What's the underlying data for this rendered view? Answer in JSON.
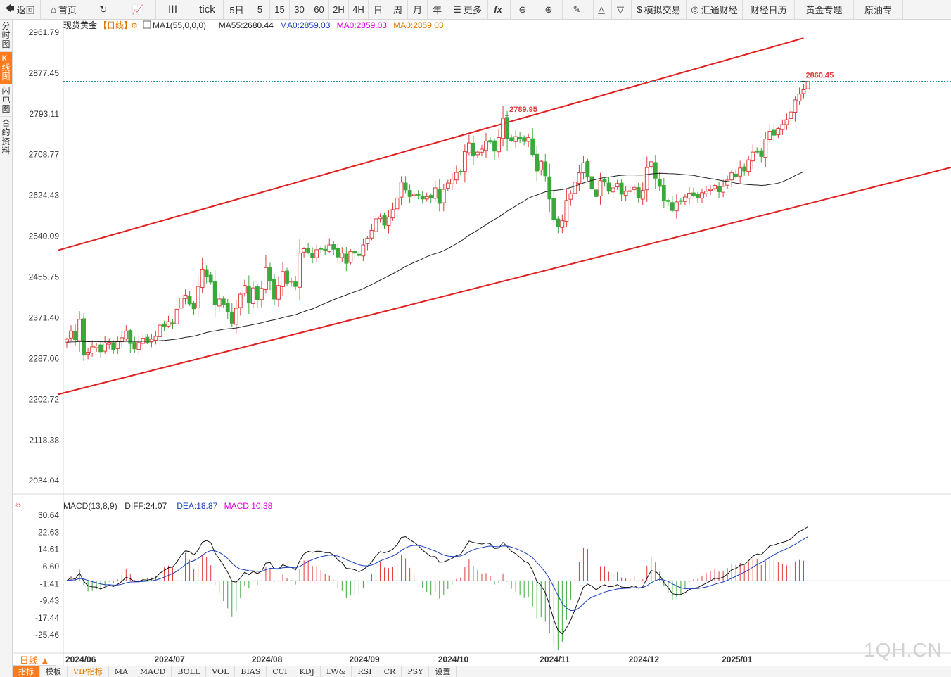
{
  "toolbar": {
    "items": [
      {
        "label": "返回",
        "icon": "back-arrow-icon",
        "glyph": "🡄"
      },
      {
        "label": "首页",
        "icon": "home-icon",
        "glyph": "⌂"
      },
      {
        "label": "",
        "icon": "refresh-icon",
        "glyph": "↻"
      },
      {
        "label": "",
        "icon": "candlestick-chart-icon",
        "glyph": "📈"
      },
      {
        "label": "",
        "icon": "candle-bars-icon",
        "glyph": "┃┃┃"
      },
      {
        "label": "tick",
        "icon": "",
        "glyph": ""
      },
      {
        "label": "5日",
        "icon": "",
        "glyph": ""
      },
      {
        "label": "5",
        "icon": "",
        "glyph": ""
      },
      {
        "label": "15",
        "icon": "",
        "glyph": ""
      },
      {
        "label": "30",
        "icon": "",
        "glyph": ""
      },
      {
        "label": "60",
        "icon": "",
        "glyph": ""
      },
      {
        "label": "2H",
        "icon": "",
        "glyph": ""
      },
      {
        "label": "4H",
        "icon": "",
        "glyph": ""
      },
      {
        "label": "日",
        "icon": "",
        "glyph": ""
      },
      {
        "label": "周",
        "icon": "",
        "glyph": ""
      },
      {
        "label": "月",
        "icon": "",
        "glyph": ""
      },
      {
        "label": "年",
        "icon": "",
        "glyph": ""
      },
      {
        "label": "更多",
        "icon": "menu-icon",
        "glyph": "☰"
      },
      {
        "label": "",
        "icon": "function-icon",
        "glyph": "fx"
      },
      {
        "label": "",
        "icon": "zoom-out-icon",
        "glyph": "⊖"
      },
      {
        "label": "",
        "icon": "zoom-in-icon",
        "glyph": "⊕"
      },
      {
        "label": "",
        "icon": "draw-pen-icon",
        "glyph": "✎"
      },
      {
        "label": "",
        "icon": "triangle-up-icon",
        "glyph": "△"
      },
      {
        "label": "",
        "icon": "triangle-down-icon",
        "glyph": "▽"
      },
      {
        "label": "模拟交易",
        "icon": "dollar-icon",
        "glyph": "$"
      },
      {
        "label": "汇通财经",
        "icon": "huitong-logo-icon",
        "glyph": "◎"
      },
      {
        "label": "财经日历",
        "icon": "",
        "glyph": ""
      },
      {
        "label": "黄金专题",
        "icon": "",
        "glyph": ""
      },
      {
        "label": "原油专",
        "icon": "",
        "glyph": ""
      }
    ]
  },
  "sidebar": {
    "items": [
      {
        "label": "分时图",
        "active": false
      },
      {
        "label": "K线图",
        "active": true
      },
      {
        "label": "闪电图",
        "active": false
      },
      {
        "label": "合约资料",
        "active": false
      }
    ]
  },
  "header": {
    "instrument": "现货黄金",
    "period_tag": "【日线】",
    "ma_items": [
      {
        "text": "MA1(55,0,0,0)",
        "color": "#333333"
      },
      {
        "text": "MA55:2680.44",
        "color": "#222222"
      },
      {
        "text": "MA0:2859.03",
        "color": "#1a3fbf"
      },
      {
        "text": "MA0:2859.03",
        "color": "#e000e0"
      },
      {
        "text": "MA0:2859.03",
        "color": "#e07a00"
      }
    ]
  },
  "macd_header": {
    "items": [
      {
        "text": "MACD(13,8,9)",
        "color": "#333333"
      },
      {
        "text": "DIFF:24.07",
        "color": "#222222"
      },
      {
        "text": "DEA:18.87",
        "color": "#1a3fbf"
      },
      {
        "text": "MACD:10.38",
        "color": "#e000e0"
      }
    ]
  },
  "period_button": "日线 ▲",
  "bottom_tabs": [
    {
      "label": "指标",
      "active": true,
      "vip": false
    },
    {
      "label": "模板",
      "active": false,
      "vip": false
    },
    {
      "label": "VIP指标",
      "active": false,
      "vip": true
    },
    {
      "label": "MA",
      "active": false,
      "vip": false
    },
    {
      "label": "MACD",
      "active": false,
      "vip": false
    },
    {
      "label": "BOLL",
      "active": false,
      "vip": false
    },
    {
      "label": "VOL",
      "active": false,
      "vip": false
    },
    {
      "label": "BIAS",
      "active": false,
      "vip": false
    },
    {
      "label": "CCI",
      "active": false,
      "vip": false
    },
    {
      "label": "KDJ",
      "active": false,
      "vip": false
    },
    {
      "label": "LW&",
      "active": false,
      "vip": false
    },
    {
      "label": "RSI",
      "active": false,
      "vip": false
    },
    {
      "label": "CR",
      "active": false,
      "vip": false
    },
    {
      "label": "PSY",
      "active": false,
      "vip": false
    },
    {
      "label": "设置",
      "active": false,
      "vip": false
    }
  ],
  "watermark": "1QH.CN",
  "colors": {
    "up": "#e03c3c",
    "down": "#3aa83a",
    "channel": "#e02020",
    "ma55": "#222222",
    "dea": "#1a3fbf",
    "accent": "#ff7a1a"
  },
  "chart_data": [
    {
      "type": "candlestick",
      "title": "现货黄金",
      "period": "daily",
      "y_ticks": [
        "2961.79",
        "2877.45",
        "2793.11",
        "2708.77",
        "2624.43",
        "2540.09",
        "2455.75",
        "2371.40",
        "2287.06",
        "2202.72",
        "2118.38",
        "2034.04"
      ],
      "ylim": [
        1995,
        2985
      ],
      "x_ticks": [
        {
          "label": "2024/06",
          "index": 0
        },
        {
          "label": "2024/07",
          "index": 21
        },
        {
          "label": "2024/08",
          "index": 44
        },
        {
          "label": "2024/09",
          "index": 67
        },
        {
          "label": "2024/10",
          "index": 88
        },
        {
          "label": "2024/11",
          "index": 112
        },
        {
          "label": "2024/12",
          "index": 133
        },
        {
          "label": "2025/01",
          "index": 155
        }
      ],
      "n_bars": 175,
      "closes": [
        2327,
        2344,
        2326,
        2368,
        2294,
        2300,
        2311,
        2313,
        2301,
        2319,
        2320,
        2305,
        2322,
        2330,
        2344,
        2318,
        2307,
        2320,
        2329,
        2320,
        2327,
        2333,
        2356,
        2354,
        2363,
        2358,
        2389,
        2412,
        2418,
        2400,
        2390,
        2436,
        2472,
        2457,
        2445,
        2398,
        2410,
        2398,
        2384,
        2360,
        2391,
        2420,
        2438,
        2402,
        2433,
        2408,
        2432,
        2475,
        2448,
        2410,
        2438,
        2467,
        2443,
        2447,
        2436,
        2505,
        2514,
        2507,
        2496,
        2512,
        2513,
        2511,
        2522,
        2513,
        2497,
        2505,
        2484,
        2508,
        2505,
        2500,
        2522,
        2536,
        2552,
        2576,
        2580,
        2563,
        2580,
        2595,
        2619,
        2652,
        2636,
        2622,
        2627,
        2625,
        2617,
        2622,
        2619,
        2640,
        2608,
        2637,
        2650,
        2658,
        2672,
        2673,
        2715,
        2733,
        2706,
        2714,
        2720,
        2737,
        2735,
        2716,
        2744,
        2784,
        2742,
        2738,
        2746,
        2741,
        2736,
        2744,
        2709,
        2675,
        2695,
        2665,
        2617,
        2574,
        2560,
        2572,
        2614,
        2628,
        2652,
        2671,
        2692,
        2664,
        2638,
        2622,
        2655,
        2652,
        2633,
        2640,
        2649,
        2627,
        2633,
        2634,
        2641,
        2619,
        2635,
        2682,
        2694,
        2660,
        2643,
        2613,
        2612,
        2593,
        2611,
        2612,
        2621,
        2629,
        2624,
        2620,
        2630,
        2633,
        2637,
        2645,
        2632,
        2643,
        2656,
        2671,
        2664,
        2681,
        2675,
        2698,
        2714,
        2715,
        2705,
        2741,
        2757,
        2749,
        2763,
        2771,
        2781,
        2797,
        2822,
        2834,
        2843,
        2860
      ],
      "ma55_note": "MA55 values derived by simple moving average of closes (window 55)",
      "annotations": [
        {
          "text": "2789.95",
          "bar": 104,
          "price": 2789.95
        },
        {
          "text": "2860.45",
          "bar": 174,
          "price": 2860.45
        }
      ],
      "reference_line": 2860.45,
      "channel": {
        "upper": [
          {
            "bar": -2,
            "price": 2511
          },
          {
            "bar": 174,
            "price": 2950
          }
        ],
        "lower": [
          {
            "bar": -2,
            "price": 2213
          },
          {
            "bar": 210,
            "price": 2685
          }
        ]
      }
    },
    {
      "type": "macd",
      "title": "MACD(13,8,9)",
      "y_ticks": [
        "30.64",
        "22.63",
        "14.61",
        "6.60",
        "-1.41",
        "-9.43",
        "-17.44",
        "-25.46"
      ],
      "ylim": [
        -34,
        34
      ],
      "series": [
        {
          "name": "DIFF",
          "values_note": "DIFF = EMA(8) - EMA(13) of closes, scaled"
        },
        {
          "name": "DEA",
          "values_note": "DEA = EMA(9) of DIFF"
        },
        {
          "name": "MACD",
          "values_note": "histogram = 2*(DIFF-DEA)"
        }
      ],
      "last": {
        "DIFF": 24.07,
        "DEA": 18.87,
        "MACD": 10.38
      }
    }
  ]
}
